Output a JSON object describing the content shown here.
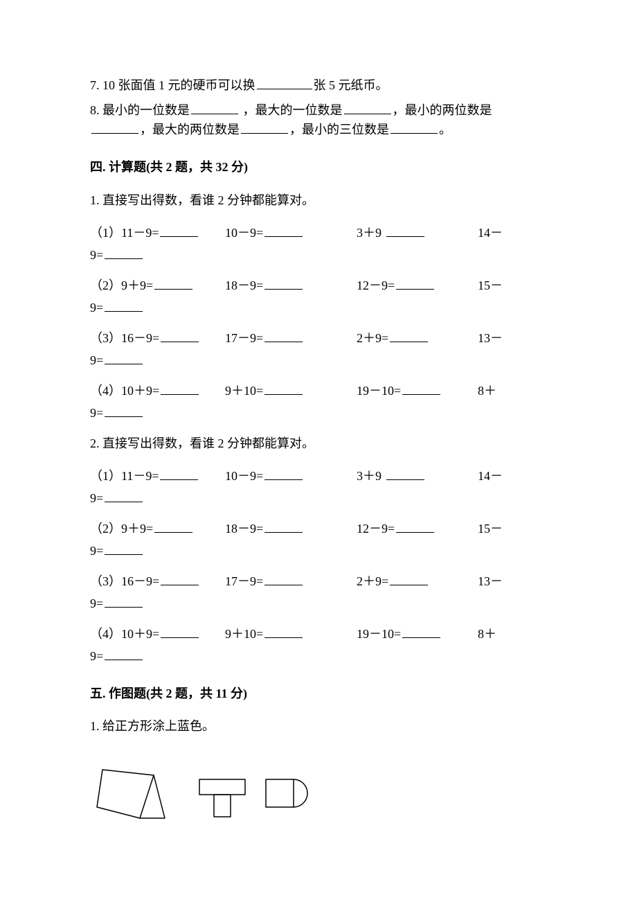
{
  "fill": {
    "q7": {
      "prefix": "7. 10 张面值 1 元的硬币可以换",
      "suffix": "张 5 元纸币。"
    },
    "q8": {
      "prefix": "8. 最小的一位数是",
      "p2": " ，最大的一位数是",
      "p3": "，最小的两位数是",
      "line2a": "，最大的两位数是",
      "line2b": "，最小的三位数是",
      "line2c": "。"
    }
  },
  "sec4": {
    "title": "四. 计算题(共 2 题，共 32 分)",
    "q1_lead": "1. 直接写出得数，看谁 2 分钟都能算对。",
    "q2_lead": "2. 直接写出得数，看谁 2 分钟都能算对。",
    "rows": [
      {
        "n": "（1）",
        "a": "11－9=",
        "b": "10－9=",
        "c": "3＋9 ",
        "d1": "14－",
        "d2": "9="
      },
      {
        "n": "（2）",
        "a": "9＋9=",
        "b": "18－9=",
        "c": "12－9=",
        "d1": "15－",
        "d2": "9="
      },
      {
        "n": "（3）",
        "a": "16－9=",
        "b": "17－9=",
        "c": "2＋9=",
        "d1": "13－",
        "d2": "9="
      },
      {
        "n": "（4）",
        "a": "10＋9=",
        "b": "9＋10=",
        "c": "19－10=",
        "d1": "8＋",
        "d2": "9="
      }
    ]
  },
  "sec5": {
    "title": "五. 作图题(共 2 题，共 11 分)",
    "q1": "1. 给正方形涂上蓝色。"
  },
  "style": {
    "text_color": "#000000",
    "bg_color": "#ffffff",
    "blank_color": "#000000",
    "font_size_pt": 13,
    "stroke_color": "#000000",
    "stroke_width": 1.5
  }
}
